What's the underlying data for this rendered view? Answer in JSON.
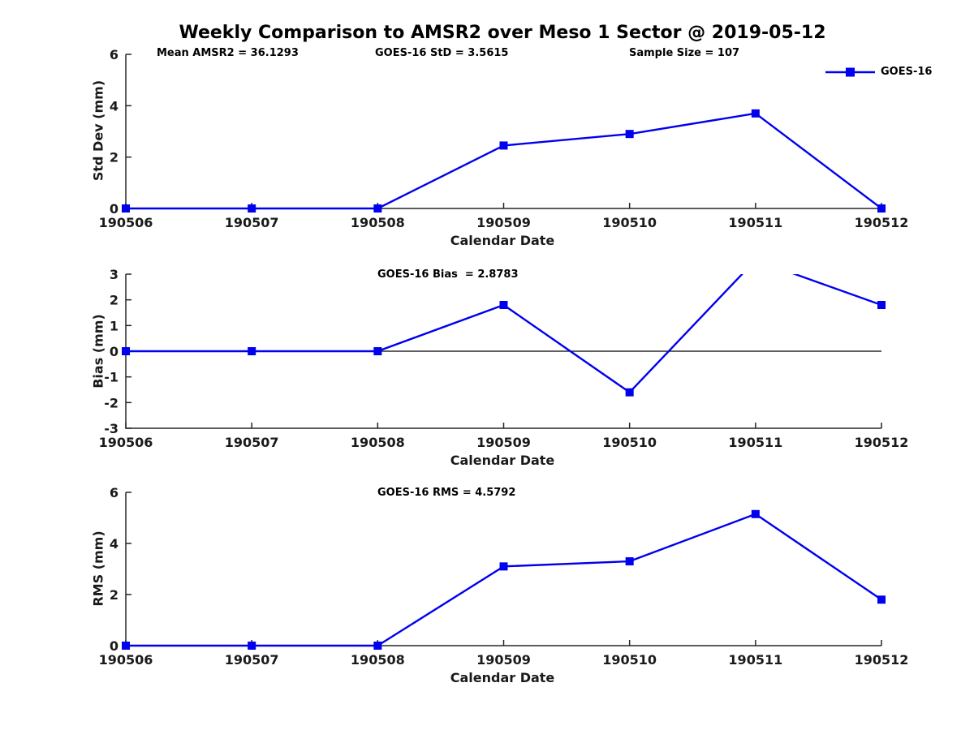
{
  "title": "Weekly Comparison to AMSR2 over Meso 1 Sector @ 2019-05-12",
  "legend": {
    "label": "GOES-16",
    "marker": "square-icon",
    "position": "top-right"
  },
  "colors": {
    "line": "#0000ee",
    "axis": "#262626",
    "tick_text": "#1a1a1a",
    "zero_line": "#000000",
    "background": "#ffffff"
  },
  "chart_data": [
    {
      "type": "line",
      "name": "std-dev-subplot",
      "categories": [
        "190506",
        "190507",
        "190508",
        "190509",
        "190510",
        "190511",
        "190512"
      ],
      "series": [
        {
          "name": "GOES-16",
          "values": [
            0,
            0,
            0,
            2.45,
            2.9,
            3.7,
            0
          ]
        }
      ],
      "xlabel": "Calendar Date",
      "ylabel": "Std Dev (mm)",
      "ylim": [
        0,
        6
      ],
      "yticks": [
        0,
        2,
        4,
        6
      ],
      "grid": false,
      "zero_line": false,
      "annotations": [
        "Mean AMSR2 = 36.1293",
        "GOES-16 StD = 3.5615",
        "Sample Size = 107"
      ]
    },
    {
      "type": "line",
      "name": "bias-subplot",
      "categories": [
        "190506",
        "190507",
        "190508",
        "190509",
        "190510",
        "190511",
        "190512"
      ],
      "series": [
        {
          "name": "GOES-16",
          "values": [
            0,
            0,
            0,
            1.8,
            -1.6,
            3.55,
            1.8
          ]
        }
      ],
      "xlabel": "Calendar Date",
      "ylabel": "Bias (mm)",
      "ylim": [
        -3,
        3
      ],
      "yticks": [
        -3,
        -2,
        -1,
        0,
        1,
        2,
        3
      ],
      "grid": false,
      "zero_line": true,
      "clip_note": "value 3.55 at 190511 exceeds axis top and is clipped",
      "annotations": [
        "GOES-16 Bias  = 2.8783"
      ]
    },
    {
      "type": "line",
      "name": "rms-subplot",
      "categories": [
        "190506",
        "190507",
        "190508",
        "190509",
        "190510",
        "190511",
        "190512"
      ],
      "series": [
        {
          "name": "GOES-16",
          "values": [
            0,
            0,
            0,
            3.1,
            3.3,
            5.15,
            1.8
          ]
        }
      ],
      "xlabel": "Calendar Date",
      "ylabel": "RMS (mm)",
      "ylim": [
        0,
        6
      ],
      "yticks": [
        0,
        2,
        4,
        6
      ],
      "grid": false,
      "zero_line": false,
      "annotations": [
        "GOES-16 RMS = 4.5792"
      ]
    }
  ]
}
